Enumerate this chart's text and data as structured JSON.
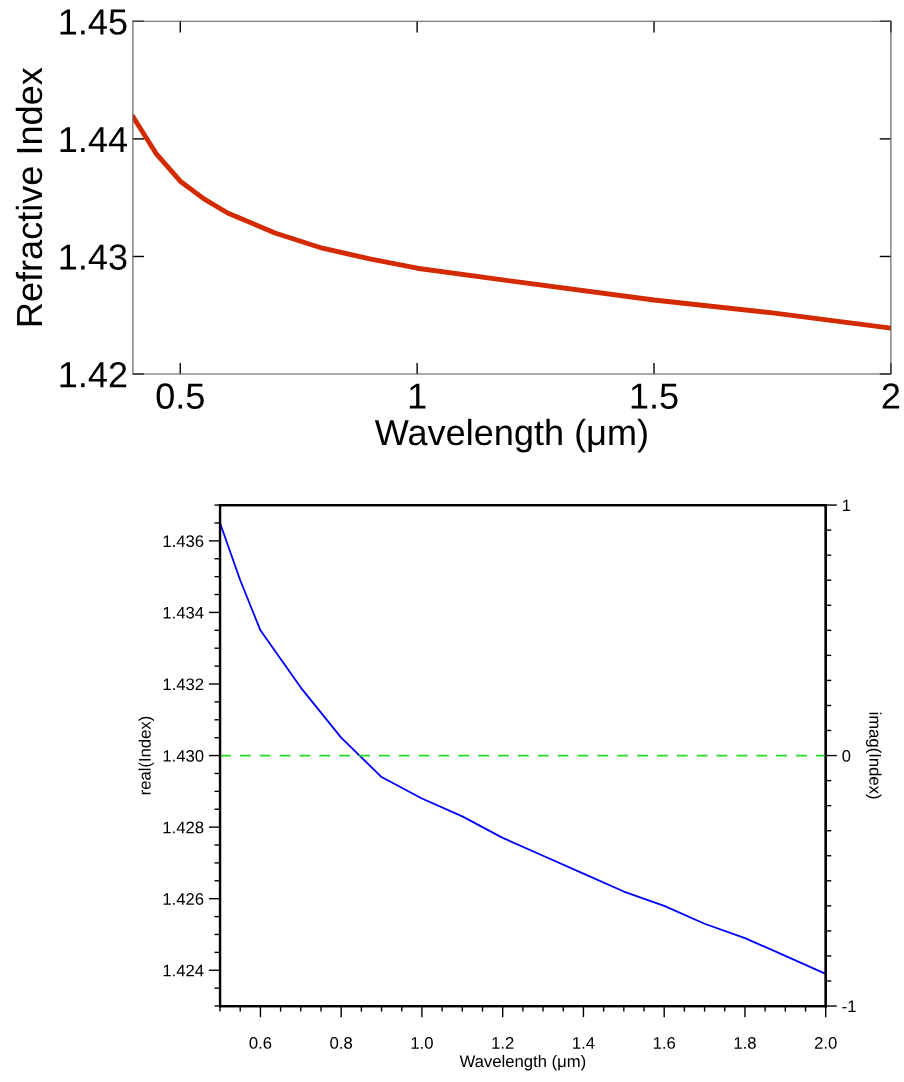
{
  "chart_data": [
    {
      "type": "line",
      "xlabel": "Wavelength (μm)",
      "ylabel": "Refractive Index",
      "x": [
        0.4,
        0.45,
        0.5,
        0.55,
        0.6,
        0.7,
        0.8,
        0.9,
        1.0,
        1.2,
        1.5,
        1.75,
        2.0
      ],
      "series": [
        {
          "color": "#d42a00",
          "values": [
            1.4419,
            1.4387,
            1.4364,
            1.4349,
            1.4337,
            1.432,
            1.4307,
            1.4298,
            1.429,
            1.4279,
            1.4263,
            1.4252,
            1.4239
          ]
        }
      ],
      "xlim": [
        0.4,
        2
      ],
      "xticks": [
        0.5,
        1,
        1.5,
        2
      ],
      "ylim": [
        1.42,
        1.45
      ],
      "yticks": [
        1.42,
        1.43,
        1.44,
        1.45
      ]
    },
    {
      "type": "line",
      "xlabel": "Wavelength (μm)",
      "ylabel": "real(Index)",
      "y2label": "imag(Index)",
      "x": [
        0.5,
        0.55,
        0.6,
        0.7,
        0.8,
        0.9,
        1.0,
        1.1,
        1.2,
        1.3,
        1.4,
        1.5,
        1.6,
        1.7,
        1.8,
        1.9,
        2.0
      ],
      "series": [
        {
          "color": "#0000ff",
          "values": [
            1.4365,
            1.4349,
            1.4335,
            1.4319,
            1.4305,
            1.4294,
            1.4288,
            1.4283,
            1.4277,
            1.4272,
            1.4267,
            1.4262,
            1.4258,
            1.4253,
            1.4249,
            1.4244,
            1.4239
          ]
        },
        {
          "color": "#22dd22",
          "axis": "y2",
          "line_style": "dashed",
          "x": [
            0.5,
            2.0
          ],
          "values": [
            0,
            0
          ]
        }
      ],
      "xlim": [
        0.5,
        2.0
      ],
      "xticks": [
        {
          "value": 0.5,
          "label": null
        },
        {
          "value": 0.55,
          "label": null
        },
        0.6,
        {
          "value": 0.65,
          "label": null
        },
        {
          "value": 0.7,
          "label": null
        },
        {
          "value": 0.75,
          "label": null
        },
        0.8,
        {
          "value": 0.85,
          "label": null
        },
        {
          "value": 0.9,
          "label": null
        },
        {
          "value": 0.95,
          "label": null
        },
        {
          "value": 1.0,
          "label": "1.0"
        },
        {
          "value": 1.05,
          "label": null
        },
        {
          "value": 1.1,
          "label": null
        },
        {
          "value": 1.15,
          "label": null
        },
        1.2,
        {
          "value": 1.25,
          "label": null
        },
        {
          "value": 1.3,
          "label": null
        },
        {
          "value": 1.35,
          "label": null
        },
        1.4,
        {
          "value": 1.45,
          "label": null
        },
        {
          "value": 1.5,
          "label": null
        },
        {
          "value": 1.55,
          "label": null
        },
        1.6,
        {
          "value": 1.65,
          "label": null
        },
        {
          "value": 1.7,
          "label": null
        },
        {
          "value": 1.75,
          "label": null
        },
        1.8,
        {
          "value": 1.85,
          "label": null
        },
        {
          "value": 1.9,
          "label": null
        },
        {
          "value": 1.95,
          "label": null
        },
        {
          "value": 2.0,
          "label": "2.0"
        }
      ],
      "ylim": [
        1.423,
        1.437
      ],
      "yticks": [
        {
          "value": 1.423,
          "label": null
        },
        {
          "value": 1.4235,
          "label": null
        },
        1.424,
        {
          "value": 1.4245,
          "label": null
        },
        {
          "value": 1.425,
          "label": null
        },
        {
          "value": 1.4255,
          "label": null
        },
        1.426,
        {
          "value": 1.4265,
          "label": null
        },
        {
          "value": 1.427,
          "label": null
        },
        {
          "value": 1.4275,
          "label": null
        },
        1.428,
        {
          "value": 1.4285,
          "label": null
        },
        {
          "value": 1.429,
          "label": null
        },
        {
          "value": 1.4295,
          "label": null
        },
        {
          "value": 1.43,
          "label": "1.430"
        },
        {
          "value": 1.4305,
          "label": null
        },
        {
          "value": 1.431,
          "label": null
        },
        {
          "value": 1.4315,
          "label": null
        },
        1.432,
        {
          "value": 1.4325,
          "label": null
        },
        {
          "value": 1.433,
          "label": null
        },
        {
          "value": 1.4335,
          "label": null
        },
        1.434,
        {
          "value": 1.4345,
          "label": null
        },
        {
          "value": 1.435,
          "label": null
        },
        {
          "value": 1.4355,
          "label": null
        },
        1.436,
        {
          "value": 1.4365,
          "label": null
        },
        {
          "value": 1.437,
          "label": null
        }
      ],
      "y2lim": [
        -1,
        1
      ],
      "y2ticks": [
        -1,
        {
          "value": -0.9,
          "label": null
        },
        {
          "value": -0.8,
          "label": null
        },
        {
          "value": -0.7,
          "label": null
        },
        {
          "value": -0.6,
          "label": null
        },
        {
          "value": -0.5,
          "label": null
        },
        {
          "value": -0.4,
          "label": null
        },
        {
          "value": -0.3,
          "label": null
        },
        {
          "value": -0.2,
          "label": null
        },
        {
          "value": -0.1,
          "label": null
        },
        0,
        {
          "value": 0.1,
          "label": null
        },
        {
          "value": 0.2,
          "label": null
        },
        {
          "value": 0.3,
          "label": null
        },
        {
          "value": 0.4,
          "label": null
        },
        {
          "value": 0.5,
          "label": null
        },
        {
          "value": 0.6,
          "label": null
        },
        {
          "value": 0.7,
          "label": null
        },
        {
          "value": 0.8,
          "label": null
        },
        {
          "value": 0.9,
          "label": null
        },
        1
      ]
    }
  ]
}
